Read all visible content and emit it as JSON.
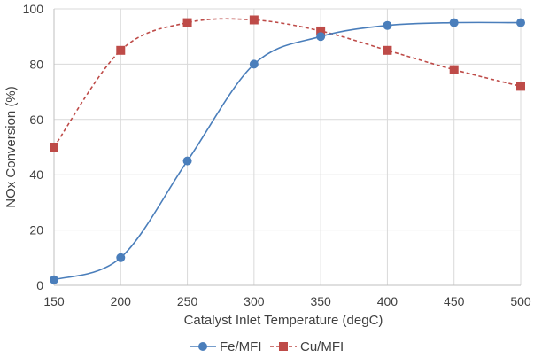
{
  "chart_data": {
    "type": "line",
    "title": "",
    "xlabel": "Catalyst Inlet Temperature (degC)",
    "ylabel": "NOx Conversion (%)",
    "xlim": [
      150,
      500
    ],
    "ylim": [
      0,
      100
    ],
    "x_ticks": [
      150,
      200,
      250,
      300,
      350,
      400,
      450,
      500
    ],
    "y_ticks": [
      0,
      20,
      40,
      60,
      80,
      100
    ],
    "x_tick_labels": [
      "150",
      "200",
      "250",
      "300",
      "350",
      "400",
      "450",
      "500"
    ],
    "y_tick_labels": [
      "0",
      "20",
      "40",
      "60",
      "80",
      "100"
    ],
    "grid": true,
    "legend_position": "bottom",
    "x": [
      150,
      200,
      250,
      300,
      350,
      400,
      450,
      500
    ],
    "series": [
      {
        "name": "Fe/MFI",
        "values": [
          2,
          10,
          45,
          80,
          90,
          94,
          95,
          95
        ],
        "color": "#4a7ebb",
        "line_style": "solid",
        "marker": "circle",
        "smooth": true
      },
      {
        "name": "Cu/MFI",
        "values": [
          50,
          85,
          95,
          96,
          92,
          85,
          78,
          72
        ],
        "color": "#be4b48",
        "line_style": "dashed",
        "marker": "square",
        "smooth": true
      }
    ]
  }
}
